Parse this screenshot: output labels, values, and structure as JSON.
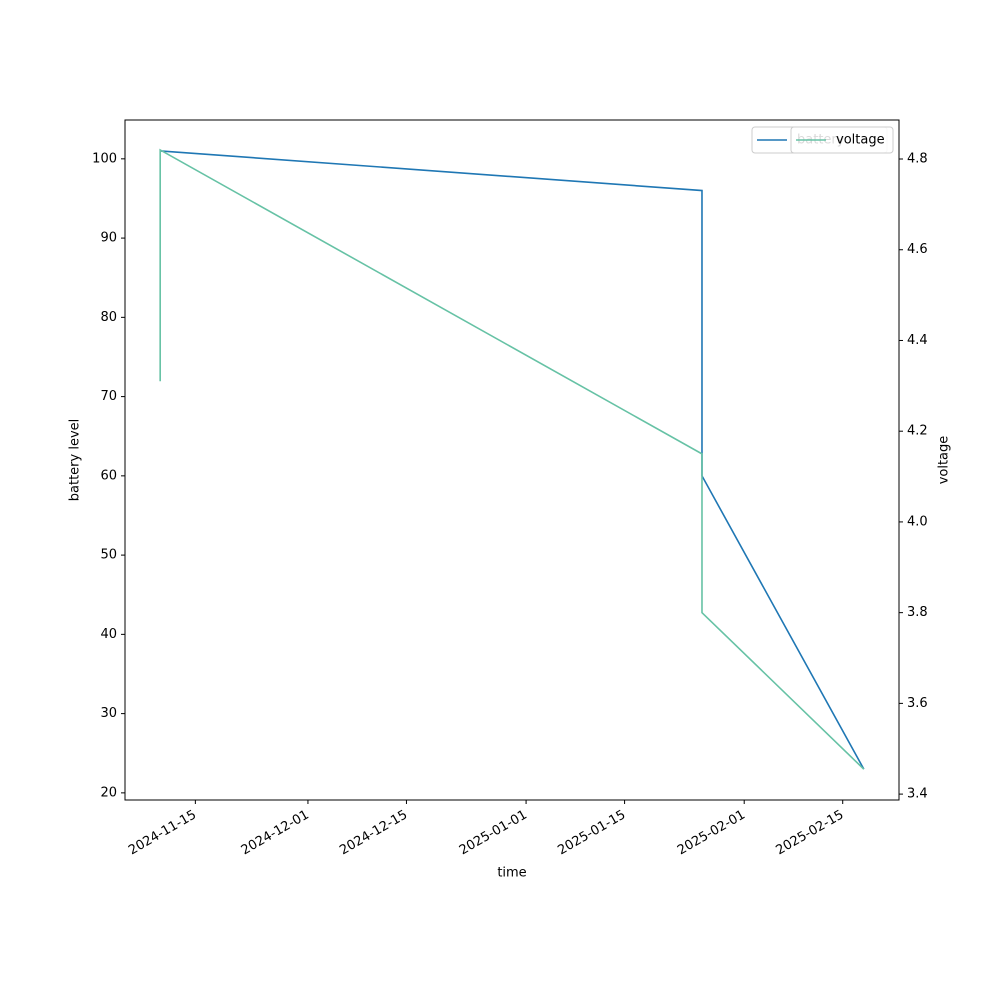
{
  "chart_data": {
    "type": "line",
    "xlabel": "time",
    "ylabel": "battery level",
    "y2label": "voltage",
    "series": [
      {
        "name": "battery",
        "color": "#1f77b4",
        "x": [
          "2024-11-10",
          "2025-01-26",
          "2025-01-26",
          "2025-02-18"
        ],
        "values": [
          101,
          96,
          60,
          23
        ]
      },
      {
        "name": "voltage",
        "color": "#66c2a5",
        "axis": "y2",
        "x": [
          "2024-11-10",
          "2024-11-10",
          "2025-01-26",
          "2025-01-26",
          "2025-02-18"
        ],
        "values": [
          4.31,
          4.82,
          4.15,
          3.8,
          3.455
        ]
      }
    ],
    "xlim": [
      "2024-11-05",
      "2025-02-23"
    ],
    "xticks": [
      "2024-11-15",
      "2024-12-01",
      "2024-12-15",
      "2025-01-01",
      "2025-01-15",
      "2025-02-01",
      "2025-02-15"
    ],
    "ylim": [
      19.1,
      104.9
    ],
    "yticks": [
      20,
      30,
      40,
      50,
      60,
      70,
      80,
      90,
      100
    ],
    "y2lim": [
      3.387,
      4.886
    ],
    "y2ticks": [
      3.4,
      3.6,
      3.8,
      {
        "value": 4,
        "label": "4.0"
      },
      4.2,
      4.4,
      4.6,
      4.8
    ],
    "legend": "upper right"
  }
}
